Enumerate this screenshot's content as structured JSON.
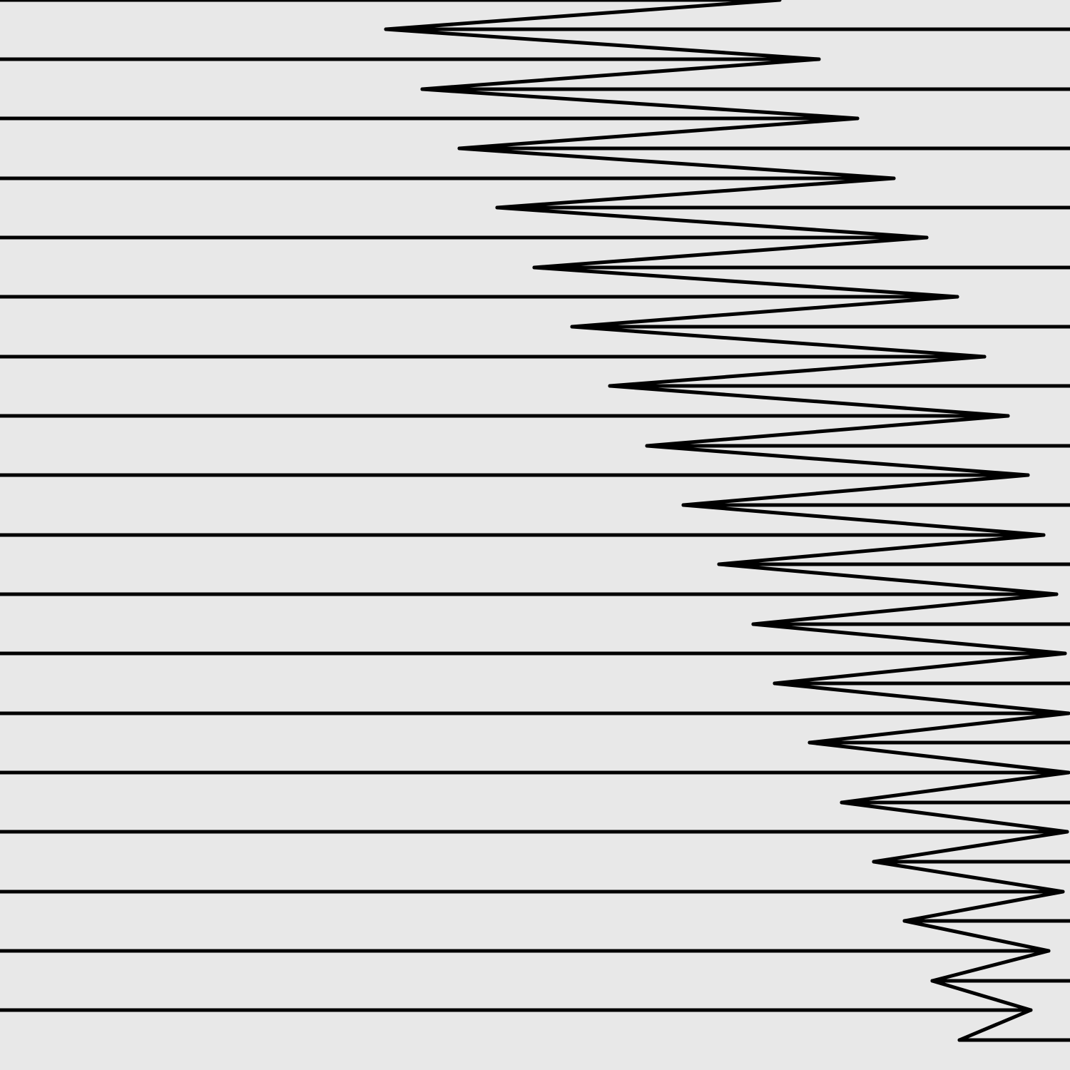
{
  "colors": {
    "background": "#e8e8e8",
    "stroke": "#000000"
  }
}
